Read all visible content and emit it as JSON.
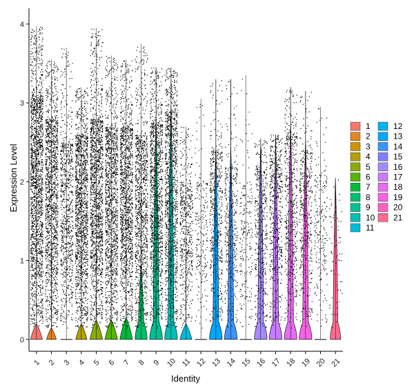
{
  "chart_data": {
    "type": "violin",
    "xlabel": "Identity",
    "ylabel": "Expression Level",
    "ylim": [
      -0.15,
      4.2
    ],
    "yticks": [
      0,
      1,
      2,
      3,
      4
    ],
    "categories": [
      "1",
      "2",
      "3",
      "4",
      "5",
      "6",
      "7",
      "8",
      "9",
      "10",
      "11",
      "12",
      "13",
      "14",
      "15",
      "16",
      "17",
      "18",
      "19",
      "20",
      "21"
    ],
    "colors": [
      "#F8766D",
      "#E7851E",
      "#D09400",
      "#B2A100",
      "#8BAB00",
      "#55B400",
      "#00BA38",
      "#00BE6C",
      "#00C094",
      "#00BFB7",
      "#00BBDA",
      "#00B2F3",
      "#00A6FF",
      "#3A95FF",
      "#7F7FFF",
      "#A58AFF",
      "#C77CFF",
      "#E76BF3",
      "#F564E3",
      "#FF61C3",
      "#FF6C91"
    ],
    "series": [
      {
        "cluster": "1",
        "max": 3.97,
        "dense_top": 3.1,
        "point_density": 1.0,
        "violin_height": 0.2,
        "violin_width": 0.8
      },
      {
        "cluster": "2",
        "max": 3.55,
        "dense_top": 2.8,
        "point_density": 0.8,
        "violin_height": 0.15,
        "violin_width": 0.65
      },
      {
        "cluster": "3",
        "max": 3.7,
        "dense_top": 2.5,
        "point_density": 0.45,
        "violin_height": 0.0,
        "violin_width": 0.0
      },
      {
        "cluster": "4",
        "max": 3.2,
        "dense_top": 2.6,
        "point_density": 0.8,
        "violin_height": 0.2,
        "violin_width": 0.75
      },
      {
        "cluster": "5",
        "max": 3.95,
        "dense_top": 2.8,
        "point_density": 0.85,
        "violin_height": 0.25,
        "violin_width": 0.85
      },
      {
        "cluster": "6",
        "max": 3.6,
        "dense_top": 2.7,
        "point_density": 0.75,
        "violin_height": 0.25,
        "violin_width": 0.85
      },
      {
        "cluster": "7",
        "max": 3.55,
        "dense_top": 2.7,
        "point_density": 0.75,
        "violin_height": 0.28,
        "violin_width": 0.85
      },
      {
        "cluster": "8",
        "max": 3.75,
        "dense_top": 2.6,
        "point_density": 0.6,
        "violin_height": 0.95,
        "violin_width": 0.8
      },
      {
        "cluster": "9",
        "max": 3.45,
        "dense_top": 2.75,
        "point_density": 0.65,
        "violin_height": 2.85,
        "violin_width": 0.85
      },
      {
        "cluster": "10",
        "max": 3.45,
        "dense_top": 2.9,
        "point_density": 0.65,
        "violin_height": 3.0,
        "violin_width": 0.85
      },
      {
        "cluster": "11",
        "max": 2.7,
        "dense_top": 2.0,
        "point_density": 0.3,
        "violin_height": 0.2,
        "violin_width": 0.8
      },
      {
        "cluster": "12",
        "max": 3.05,
        "dense_top": 2.0,
        "point_density": 0.12,
        "violin_height": 0.0,
        "violin_width": 0.0
      },
      {
        "cluster": "13",
        "max": 3.3,
        "dense_top": 2.4,
        "point_density": 0.3,
        "violin_height": 2.45,
        "violin_width": 0.85
      },
      {
        "cluster": "14",
        "max": 3.3,
        "dense_top": 2.2,
        "point_density": 0.22,
        "violin_height": 2.45,
        "violin_width": 0.85
      },
      {
        "cluster": "15",
        "max": 3.35,
        "dense_top": 2.0,
        "point_density": 0.12,
        "violin_height": 0.0,
        "violin_width": 0.0
      },
      {
        "cluster": "16",
        "max": 2.55,
        "dense_top": 2.2,
        "point_density": 0.25,
        "violin_height": 2.5,
        "violin_width": 0.85
      },
      {
        "cluster": "17",
        "max": 2.6,
        "dense_top": 2.3,
        "point_density": 0.3,
        "violin_height": 2.55,
        "violin_width": 0.85
      },
      {
        "cluster": "18",
        "max": 3.2,
        "dense_top": 2.6,
        "point_density": 0.3,
        "violin_height": 2.75,
        "violin_width": 0.85
      },
      {
        "cluster": "19",
        "max": 3.15,
        "dense_top": 2.4,
        "point_density": 0.25,
        "violin_height": 2.55,
        "violin_width": 0.85
      },
      {
        "cluster": "20",
        "max": 2.95,
        "dense_top": 2.1,
        "point_density": 0.12,
        "violin_height": 0.0,
        "violin_width": 0.0
      },
      {
        "cluster": "21",
        "max": 2.05,
        "dense_top": 1.8,
        "point_density": 0.04,
        "violin_height": 2.05,
        "violin_width": 0.7
      }
    ],
    "legend": {
      "placement": "right",
      "columns": 2,
      "col1": [
        "1",
        "2",
        "3",
        "4",
        "5",
        "6",
        "7",
        "8",
        "9",
        "10",
        "11"
      ],
      "col2": [
        "12",
        "13",
        "14",
        "15",
        "16",
        "17",
        "18",
        "19",
        "20",
        "21"
      ]
    },
    "grid": false
  }
}
